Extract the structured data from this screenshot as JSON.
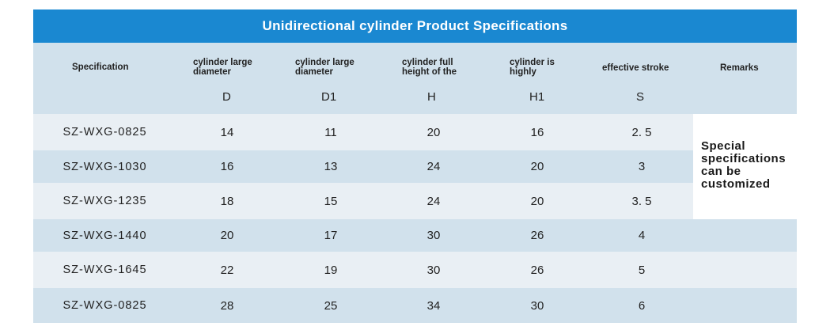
{
  "title": "Unidirectional cylinder Product Specifications",
  "headers": {
    "spec": "Specification",
    "large_diameter_1": [
      "cylinder large",
      "diameter"
    ],
    "large_diameter_2": [
      "cylinder large",
      "diameter"
    ],
    "full_height": [
      "cylinder full",
      "height of the"
    ],
    "highly": [
      "cylinder is",
      "highly"
    ],
    "stroke": "effective stroke",
    "remarks": "Remarks"
  },
  "symbols": {
    "d": "D",
    "d1": "D1",
    "h": "H",
    "h1": "H1",
    "s": "S"
  },
  "rows": [
    {
      "spec": "SZ-WXG-0825",
      "d": "14",
      "d1": "11",
      "h": "20",
      "h1": "16",
      "s": "2. 5"
    },
    {
      "spec": "SZ-WXG-1030",
      "d": "16",
      "d1": "13",
      "h": "24",
      "h1": "20",
      "s": "3"
    },
    {
      "spec": "SZ-WXG-1235",
      "d": "18",
      "d1": "15",
      "h": "24",
      "h1": "20",
      "s": "3. 5"
    },
    {
      "spec": "SZ-WXG-1440",
      "d": "20",
      "d1": "17",
      "h": "30",
      "h1": "26",
      "s": "4"
    },
    {
      "spec": "SZ-WXG-1645",
      "d": "22",
      "d1": "19",
      "h": "30",
      "h1": "26",
      "s": "5"
    },
    {
      "spec": "SZ-WXG-0825",
      "d": "28",
      "d1": "25",
      "h": "34",
      "h1": "30",
      "s": "6"
    }
  ],
  "remarks_lines": [
    "Special",
    "specifications",
    "can be",
    "customized"
  ]
}
